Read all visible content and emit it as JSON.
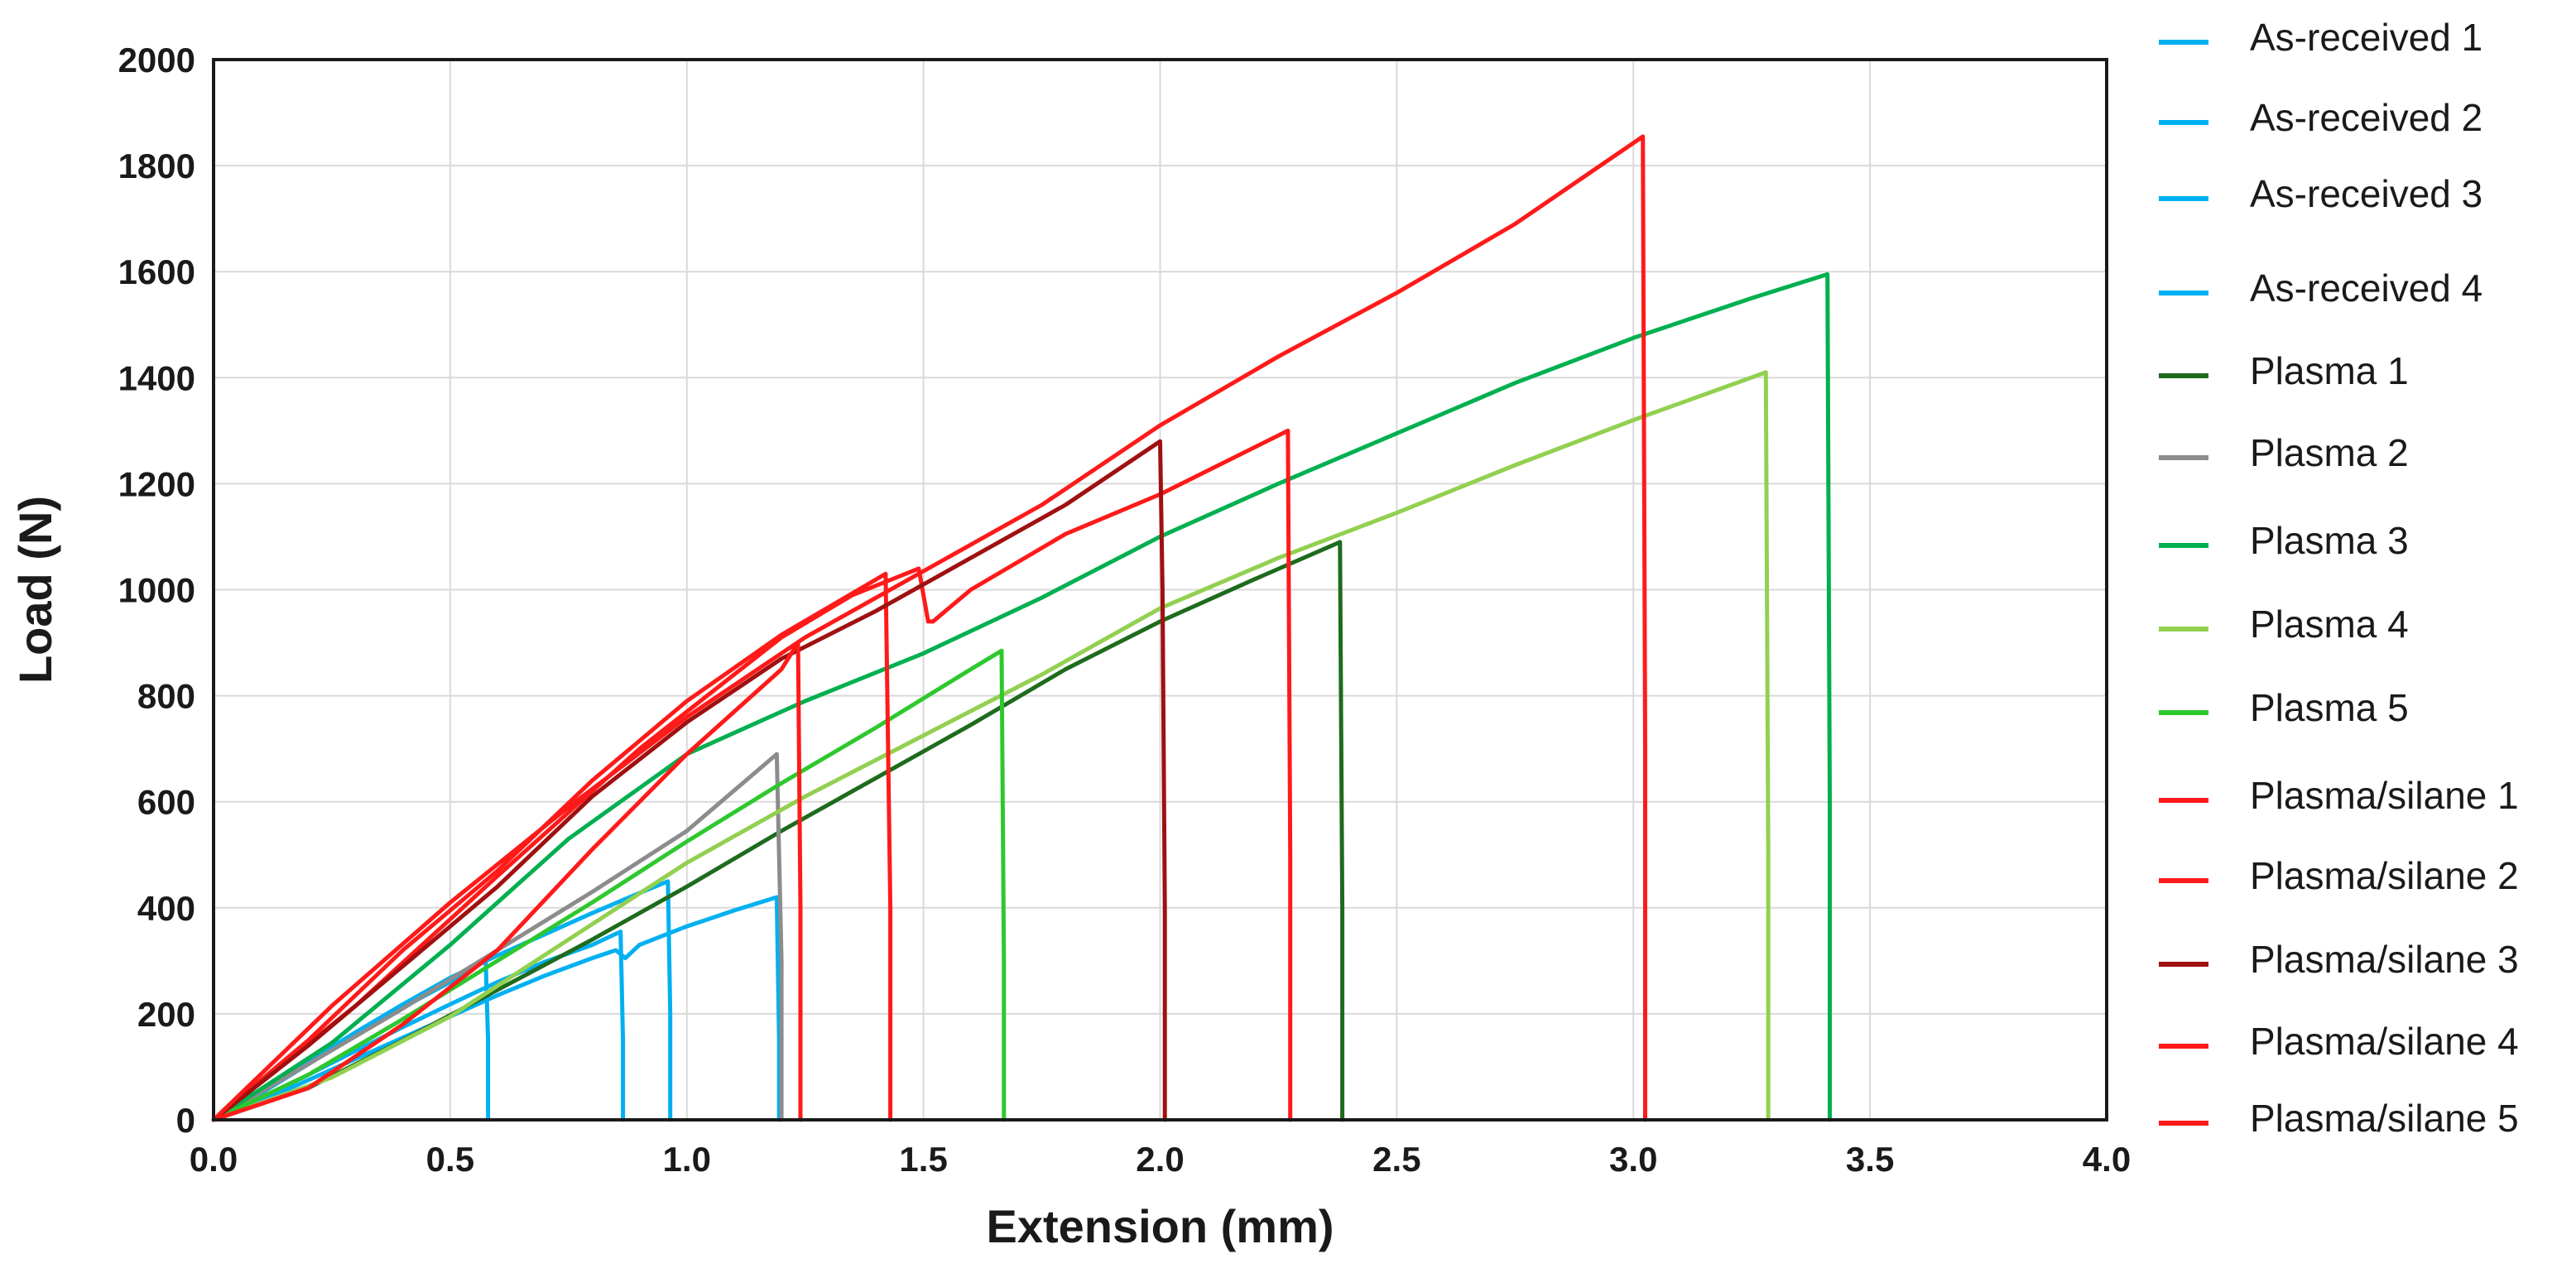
{
  "chart_data": {
    "type": "line",
    "title": "",
    "xlabel": "Extension (mm)",
    "ylabel": "Load (N)",
    "xlim": [
      0,
      4
    ],
    "ylim": [
      0,
      2000
    ],
    "grid": true,
    "legend_position": "right",
    "x_ticks": [
      "0.0",
      "0.5",
      "1.0",
      "1.5",
      "2.0",
      "2.5",
      "3.0",
      "3.5",
      "4.0"
    ],
    "y_ticks": [
      "0",
      "200",
      "400",
      "600",
      "800",
      "1000",
      "1200",
      "1400",
      "1600",
      "1800",
      "2000"
    ],
    "series": [
      {
        "name": "As-received 1",
        "color": "#00b0f0",
        "x": [
          0,
          0.1,
          0.2,
          0.3,
          0.4,
          0.5,
          0.575,
          0.58,
          0.58
        ],
        "y": [
          0,
          50,
          105,
          160,
          212,
          260,
          300,
          150,
          0
        ]
      },
      {
        "name": "As-received 2",
        "color": "#00b0f0",
        "x": [
          0,
          0.1,
          0.2,
          0.3,
          0.4,
          0.5,
          0.6,
          0.7,
          0.8,
          0.86,
          0.865,
          0.865
        ],
        "y": [
          0,
          40,
          85,
          130,
          175,
          218,
          260,
          298,
          330,
          355,
          150,
          0
        ]
      },
      {
        "name": "As-received 3",
        "color": "#00b0f0",
        "x": [
          0,
          0.1,
          0.2,
          0.3,
          0.4,
          0.5,
          0.6,
          0.7,
          0.8,
          0.9,
          0.96,
          0.965,
          0.965
        ],
        "y": [
          0,
          55,
          110,
          165,
          218,
          268,
          310,
          350,
          390,
          428,
          450,
          200,
          0
        ]
      },
      {
        "name": "As-received 4",
        "color": "#00b0f0",
        "x": [
          0,
          0.1,
          0.2,
          0.3,
          0.4,
          0.5,
          0.6,
          0.7,
          0.8,
          0.85,
          0.87,
          0.9,
          1.0,
          1.1,
          1.19,
          1.195,
          1.195
        ],
        "y": [
          0,
          35,
          75,
          115,
          155,
          195,
          235,
          272,
          305,
          320,
          305,
          330,
          365,
          395,
          420,
          150,
          0
        ]
      },
      {
        "name": "Plasma 1",
        "color": "#1e6b1e",
        "x": [
          0,
          0.2,
          0.4,
          0.6,
          0.8,
          1.0,
          1.2,
          1.4,
          1.6,
          1.8,
          2.0,
          2.2,
          2.38,
          2.385,
          2.385
        ],
        "y": [
          0,
          60,
          150,
          245,
          340,
          440,
          545,
          645,
          745,
          850,
          940,
          1020,
          1090,
          400,
          0
        ]
      },
      {
        "name": "Plasma 2",
        "color": "#8c8c8c",
        "x": [
          0,
          0.2,
          0.4,
          0.6,
          0.8,
          1.0,
          1.19,
          1.2,
          1.2
        ],
        "y": [
          0,
          105,
          210,
          320,
          430,
          545,
          690,
          300,
          0
        ]
      },
      {
        "name": "Plasma 3",
        "color": "#00b050",
        "x": [
          0,
          0.25,
          0.5,
          0.75,
          1.0,
          1.25,
          1.5,
          1.75,
          2.0,
          2.25,
          2.5,
          2.75,
          3.0,
          3.25,
          3.41,
          3.415,
          3.415
        ],
        "y": [
          0,
          145,
          330,
          530,
          690,
          790,
          880,
          985,
          1100,
          1200,
          1295,
          1390,
          1475,
          1550,
          1595,
          600,
          0
        ]
      },
      {
        "name": "Plasma 4",
        "color": "#92d050",
        "x": [
          0,
          0.25,
          0.5,
          0.75,
          1.0,
          1.25,
          1.5,
          1.75,
          2.0,
          2.25,
          2.5,
          2.75,
          3.0,
          3.28,
          3.285,
          3.285
        ],
        "y": [
          0,
          80,
          195,
          340,
          485,
          610,
          725,
          840,
          965,
          1060,
          1145,
          1235,
          1320,
          1410,
          500,
          0
        ]
      },
      {
        "name": "Plasma 5",
        "color": "#2ec82e",
        "x": [
          0,
          0.2,
          0.4,
          0.6,
          0.8,
          1.0,
          1.2,
          1.4,
          1.6,
          1.665,
          1.67,
          1.67
        ],
        "y": [
          0,
          85,
          190,
          300,
          410,
          525,
          635,
          740,
          850,
          885,
          300,
          0
        ]
      },
      {
        "name": "Plasma/silane 1",
        "color": "#ff1a1a",
        "x": [
          0,
          0.2,
          0.4,
          0.6,
          0.8,
          1.0,
          1.2,
          1.42,
          1.43,
          1.43
        ],
        "y": [
          0,
          150,
          320,
          470,
          640,
          790,
          915,
          1030,
          400,
          0
        ]
      },
      {
        "name": "Plasma/silane 2",
        "color": "#ff1a1a",
        "x": [
          0,
          0.3,
          0.6,
          0.9,
          1.2,
          1.35,
          1.49,
          1.51,
          1.52,
          1.6,
          1.8,
          2.0,
          2.27,
          2.275,
          2.275
        ],
        "y": [
          0,
          215,
          460,
          700,
          910,
          990,
          1040,
          940,
          940,
          1000,
          1105,
          1180,
          1300,
          500,
          0
        ]
      },
      {
        "name": "Plasma/silane 3",
        "color": "#a01010",
        "x": [
          0,
          0.2,
          0.4,
          0.6,
          0.8,
          1.0,
          1.2,
          1.4,
          1.6,
          1.8,
          2.0,
          2.005,
          2.01,
          2.01
        ],
        "y": [
          0,
          140,
          290,
          440,
          610,
          750,
          870,
          960,
          1060,
          1160,
          1280,
          1000,
          400,
          0
        ]
      },
      {
        "name": "Plasma/silane 4",
        "color": "#ff1a1a",
        "x": [
          0,
          0.2,
          0.4,
          0.6,
          0.8,
          1.0,
          1.2,
          1.235,
          1.24,
          1.24
        ],
        "y": [
          0,
          60,
          180,
          320,
          510,
          690,
          850,
          900,
          400,
          0
        ]
      },
      {
        "name": "Plasma/silane 5",
        "color": "#ff1a1a",
        "x": [
          0,
          0.25,
          0.5,
          0.75,
          1.0,
          1.25,
          1.5,
          1.75,
          2.0,
          2.25,
          2.5,
          2.75,
          3.02,
          3.025,
          3.025
        ],
        "y": [
          0,
          215,
          410,
          590,
          760,
          910,
          1035,
          1160,
          1310,
          1440,
          1560,
          1690,
          1855,
          700,
          0
        ]
      }
    ]
  }
}
